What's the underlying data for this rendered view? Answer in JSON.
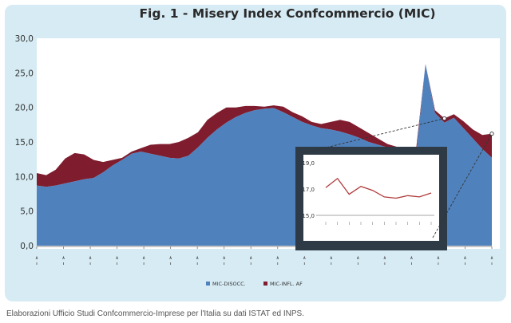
{
  "chart_data": {
    "type": "area",
    "title": "Fig. 1 - Misery Index Confcommercio (MIC)",
    "ylim": [
      0,
      30
    ],
    "y_ticks": [
      "30,0",
      "25,0",
      "20,0",
      "15,0",
      "10,0",
      "5,0",
      "0,0"
    ],
    "x_tick_labels": [
      "",
      "",
      "",
      "",
      "",
      "",
      "",
      "",
      "",
      "",
      "",
      "",
      "",
      "",
      "",
      "",
      "",
      ""
    ],
    "series": [
      {
        "name": "MIC-DISOCC.",
        "color": "#4f81bd",
        "values": [
          8.7,
          8.5,
          8.7,
          9.0,
          9.3,
          9.6,
          9.8,
          10.6,
          11.6,
          12.4,
          13.3,
          13.6,
          13.3,
          13.0,
          12.7,
          12.6,
          13.0,
          14.2,
          15.6,
          16.8,
          17.8,
          18.6,
          19.2,
          19.6,
          19.8,
          19.9,
          19.3,
          18.6,
          17.9,
          17.4,
          17.0,
          16.8,
          16.5,
          16.1,
          15.6,
          15.0,
          14.6,
          14.2,
          13.8,
          13.4,
          13.0,
          26.3,
          19.2,
          17.8,
          18.5,
          17.0,
          15.5,
          14.0,
          12.7
        ]
      },
      {
        "name": "MIC-INFL. AF",
        "color": "#7f1d2f",
        "values": [
          1.8,
          1.7,
          2.3,
          3.6,
          4.1,
          3.6,
          2.6,
          1.5,
          0.8,
          0.3,
          0.3,
          0.5,
          1.3,
          1.7,
          2.0,
          2.4,
          2.6,
          2.2,
          2.6,
          2.4,
          2.2,
          1.4,
          1.0,
          0.6,
          0.3,
          0.4,
          0.8,
          0.7,
          0.8,
          0.5,
          0.6,
          1.1,
          1.7,
          1.8,
          1.5,
          1.3,
          0.9,
          0.5,
          0.5,
          0.5,
          0.8,
          0.0,
          0.4,
          0.6,
          0.5,
          1.0,
          1.3,
          2.0,
          3.5
        ]
      }
    ],
    "legend_position": "bottom",
    "grid": false,
    "inset": {
      "type": "line",
      "color": "#b03a3a",
      "ylim": [
        15.0,
        19.0
      ],
      "y_ticks": [
        "19,0",
        "17,0",
        "15,0"
      ],
      "values": [
        17.1,
        17.8,
        16.6,
        17.2,
        16.9,
        16.4,
        16.3,
        16.5,
        16.4,
        16.7
      ]
    }
  },
  "caption": "Elaborazioni Ufficio Studi Confcommercio-Imprese per l'Italia su dati ISTAT ed INPS."
}
